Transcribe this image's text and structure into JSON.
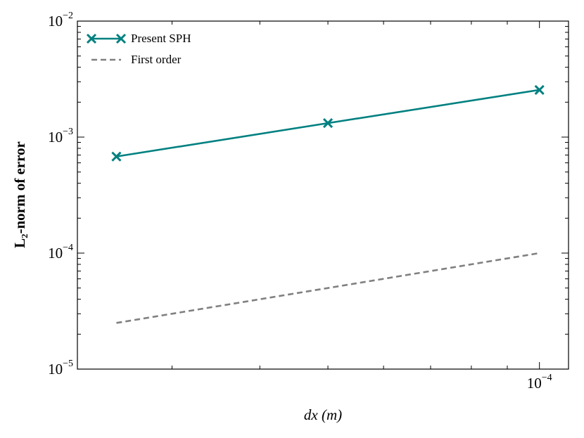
{
  "chart_data": {
    "type": "line",
    "xlabel": "dx (m)",
    "ylabel": "L₂-norm of error",
    "xscale": "log",
    "yscale": "log",
    "xlim": [
      2.2e-05,
      0.00011
    ],
    "ylim": [
      1e-05,
      0.01
    ],
    "xticks": [
      {
        "value": 0.0001,
        "label": "10^−4"
      }
    ],
    "yticks": [
      {
        "value": 1e-05,
        "label": "10^−5"
      },
      {
        "value": 0.0001,
        "label": "10^−4"
      },
      {
        "value": 0.001,
        "label": "10^−3"
      },
      {
        "value": 0.01,
        "label": "10^−2"
      }
    ],
    "minor_ticks": true,
    "legend": "upper left",
    "series": [
      {
        "name": "Present SPH",
        "color": "#008080",
        "style": "solid",
        "marker": "x",
        "x": [
          2.5e-05,
          5e-05,
          0.0001
        ],
        "values": [
          0.00068,
          0.00132,
          0.00255
        ]
      },
      {
        "name": "First order",
        "color": "#808080",
        "style": "dashed",
        "marker": "none",
        "x": [
          2.5e-05,
          5e-05,
          0.0001
        ],
        "values": [
          2.5e-05,
          5e-05,
          0.0001
        ]
      }
    ]
  }
}
